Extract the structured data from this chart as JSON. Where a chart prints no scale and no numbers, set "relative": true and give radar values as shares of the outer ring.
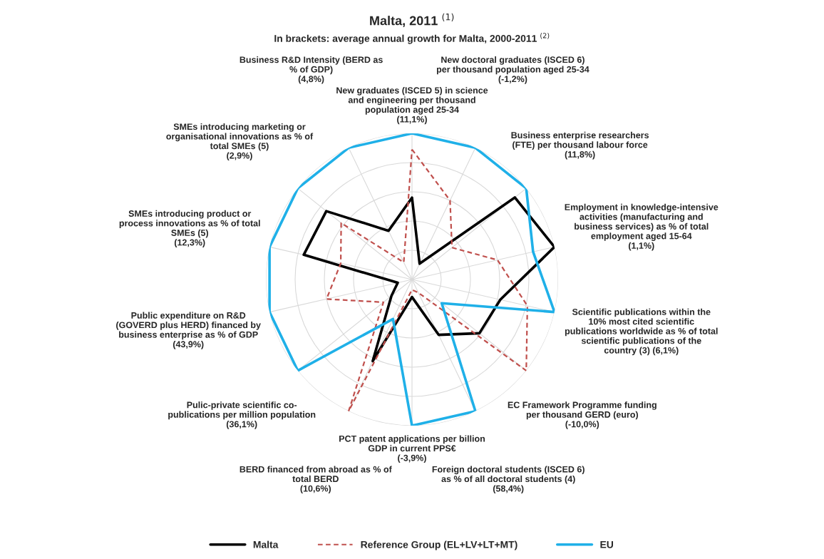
{
  "chart_data": {
    "type": "radar",
    "title": "Malta, 2011 $^{(1)}$",
    "subtitle": "In brackets: average annual growth for Malta, 2000-2011 $^{(2)}$",
    "relative": true,
    "grid": true,
    "legend": "bottom",
    "marker": "none",
    "categories": [
      "New graduates (ISCED 5) in science\nand engineering per thousand\npopulation aged 25-34\n(11,1%)",
      "New doctoral graduates (ISCED 6)\nper thousand population aged 25-34\n(-1,2%)",
      "Business enterprise researchers\n(FTE) per thousand labour force\n(11,8%)",
      "Employment in knowledge-intensive\nactivities (manufacturing and\nbusiness services) as % of total\nemployment aged 15-64\n(1,1%)",
      "Scientific publications within the\n10% most cited scientific\npublications worldwide as % of total\nscientific publications of the\ncountry (3) (6,1%)",
      "EC Framework Programme funding\nper thousand GERD (euro)\n(-10,0%)",
      "Foreign doctoral students (ISCED 6)\nas % of all doctoral students (4)\n(58,4%)",
      "PCT patent applications per billion\nGDP in current PPS€\n(-3,9%)",
      "BERD financed from abroad as % of\ntotal BERD\n(10,6%)",
      "Pulic-private scientific co-\npublications per million population\n(36,1%)",
      "Public expenditure on R&D\n(GOVERD plus HERD) financed by\nbusiness enterprise as % of GDP\n(43,9%)",
      "SMEs introducing product or\nprocess innovations as % of total\nSMEs (5)\n(12,3%)",
      "SMEs introducing marketing or\norganisational innovations as % of\ntotal SMEs (5)\n(2,9%)",
      "Business R&D Intensity (BERD as\n% of GDP)\n(4,8%)"
    ],
    "series": [
      {
        "name": "Malta",
        "color": "#000000",
        "line_style": "solid",
        "values": [
          0.56,
          0.12,
          0.9,
          1.0,
          0.62,
          0.59,
          0.42,
          0.12,
          0.62,
          0.18,
          0.1,
          0.76,
          0.75,
          0.37
        ]
      },
      {
        "name": "Reference Group (EL+LV+LT+MT)",
        "color": "#c0504d",
        "line_style": "dashed",
        "values": [
          0.89,
          0.6,
          0.35,
          0.6,
          0.81,
          1.0,
          0.1,
          0.07,
          1.0,
          0.25,
          0.6,
          0.5,
          0.62,
          0.13
        ]
      },
      {
        "name": "EU",
        "color": "#1fb0e8",
        "line_style": "solid",
        "values": [
          1.0,
          1.0,
          1.0,
          0.85,
          1.0,
          0.26,
          1.0,
          1.0,
          0.3,
          1.0,
          1.0,
          1.0,
          1.0,
          1.0
        ]
      }
    ]
  }
}
